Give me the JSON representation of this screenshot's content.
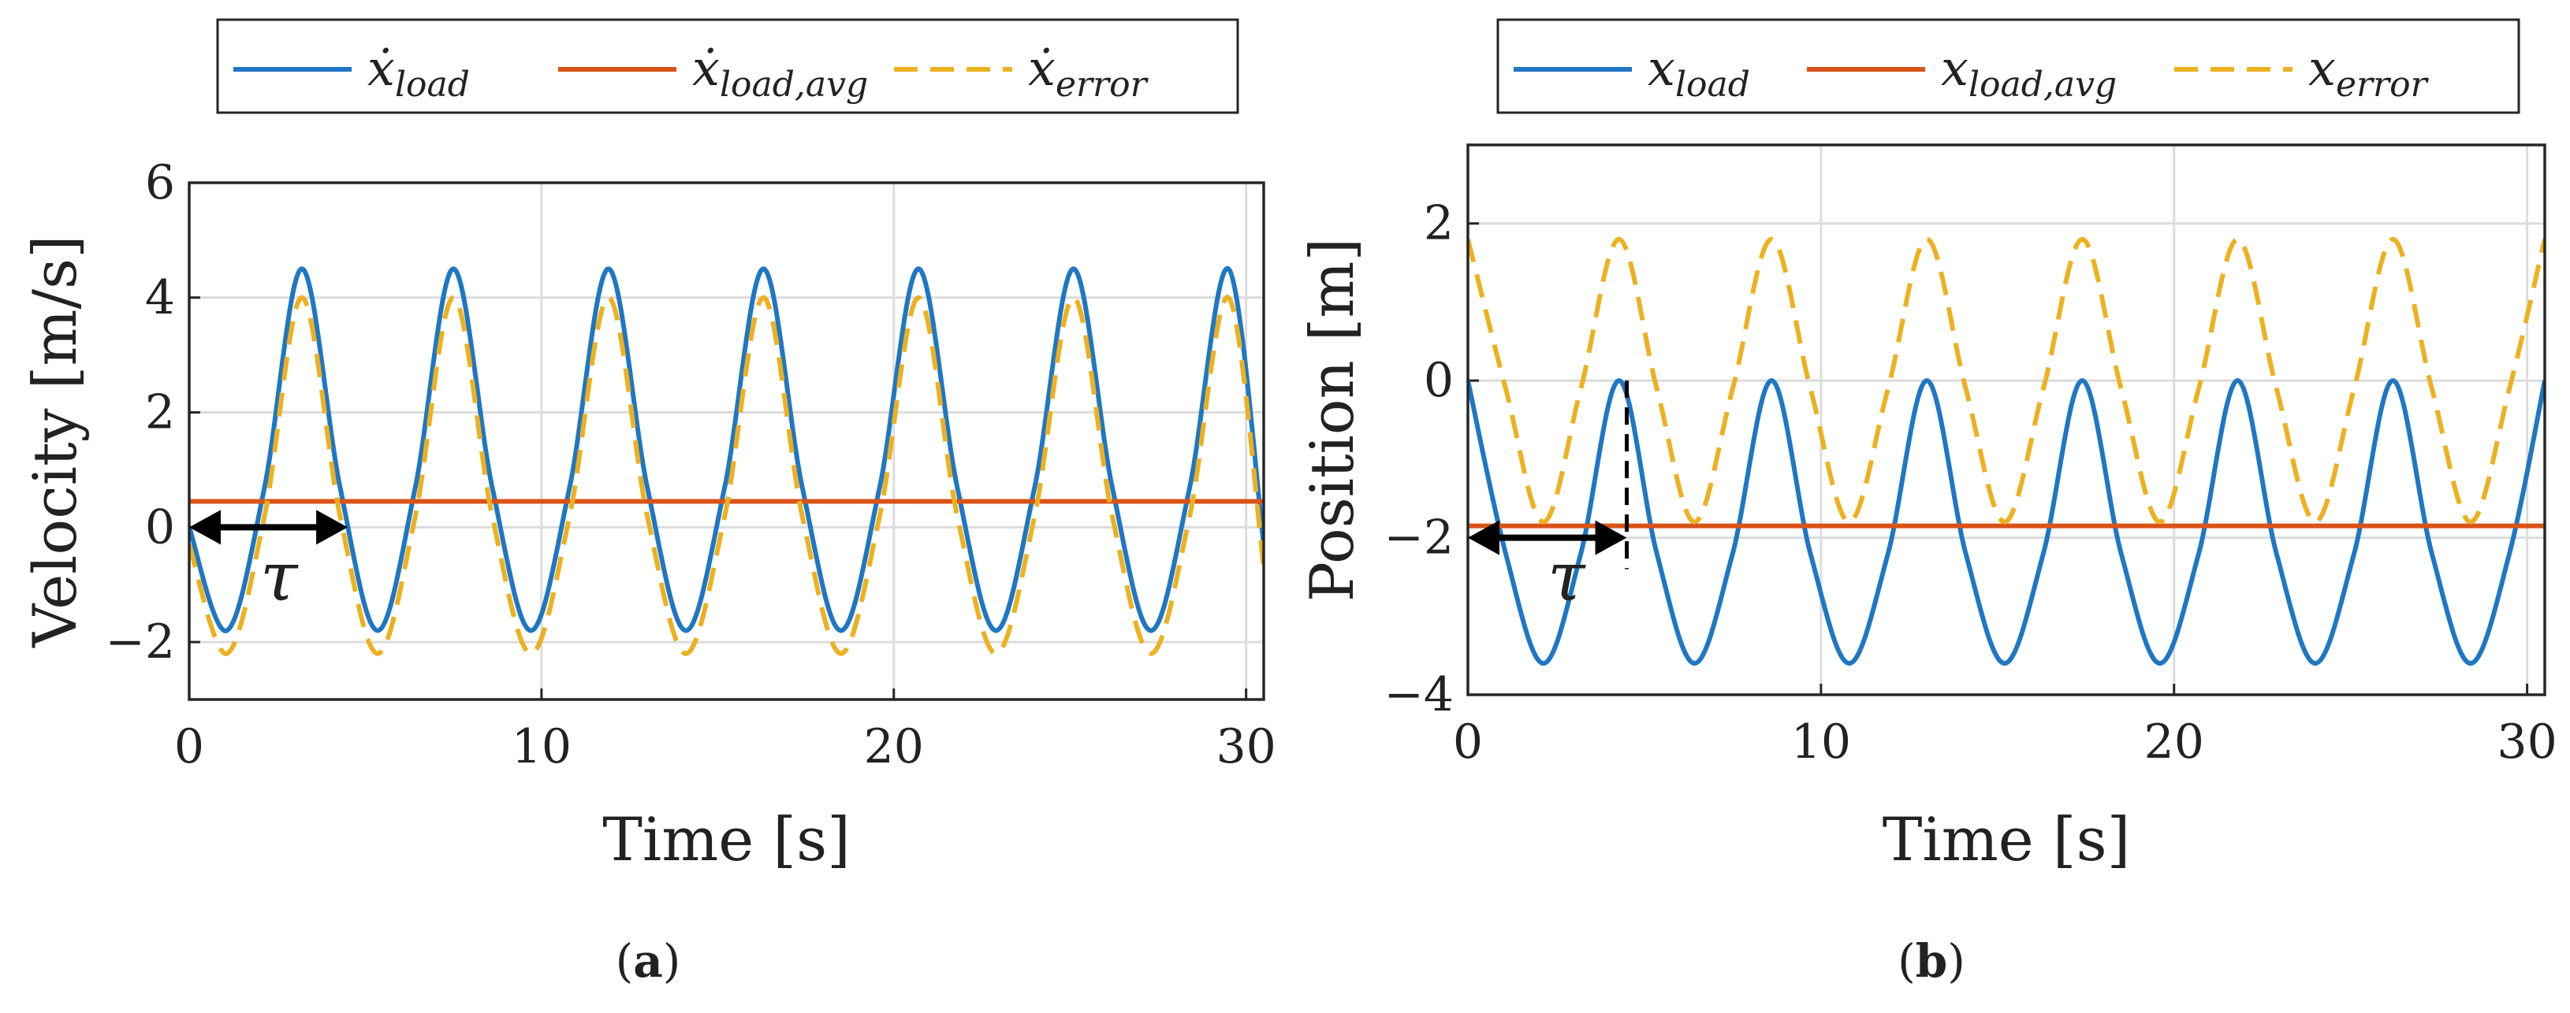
{
  "chart_data": [
    {
      "type": "line",
      "panel_label": "a",
      "xlabel": "Time [s]",
      "ylabel": "Velocity [m/s]",
      "xlim": [
        0,
        30.5
      ],
      "ylim": [
        -3,
        6
      ],
      "xticks": [
        "0",
        "10",
        "20",
        "30"
      ],
      "yticks": [
        "6",
        "4",
        "2",
        "0",
        "−2"
      ],
      "grid": true,
      "legend_position": "top-outside",
      "annotation": "τ",
      "series": [
        {
          "name": "ẋ",
          "subscript": "load",
          "color": "#1f77c4",
          "style": "solid",
          "x": [
            0,
            1.07,
            2.14,
            3.2,
            4.28,
            5.35,
            6.42,
            7.5,
            8.6,
            9.7,
            10.8,
            11.9,
            13.0,
            14.1,
            15.2,
            16.3,
            17.4,
            18.5,
            19.6,
            20.7,
            21.8,
            22.9,
            24.0,
            25.1,
            26.2,
            27.3,
            28.4,
            29.5,
            30.5
          ],
          "y": [
            0,
            -1.8,
            0.7,
            4.5,
            0.7,
            -1.8,
            0.7,
            4.5,
            0.7,
            -1.8,
            0.7,
            4.5,
            0.7,
            -1.8,
            0.7,
            4.5,
            0.7,
            -1.8,
            0.7,
            4.5,
            0.7,
            -1.8,
            0.7,
            4.5,
            0.7,
            -1.8,
            0.7,
            4.5,
            -0.3
          ]
        },
        {
          "name": "ẋ",
          "subscript": "load,avg",
          "color": "#d95319",
          "style": "solid",
          "x": [
            0,
            30.5
          ],
          "y": [
            0.45,
            0.45
          ]
        },
        {
          "name": "ẋ",
          "subscript": "error",
          "color": "#edb120",
          "style": "dashed",
          "x": [
            0,
            1.07,
            2.14,
            3.2,
            4.28,
            5.35,
            6.42,
            7.5,
            8.6,
            9.7,
            10.8,
            11.9,
            13.0,
            14.1,
            15.2,
            16.3,
            17.4,
            18.5,
            19.6,
            20.7,
            21.8,
            22.9,
            24.0,
            25.1,
            26.2,
            27.3,
            28.4,
            29.5,
            30.5
          ],
          "y": [
            -0.3,
            -2.2,
            0.2,
            4.0,
            0.2,
            -2.2,
            0.2,
            4.0,
            0.2,
            -2.2,
            0.2,
            4.0,
            0.2,
            -2.2,
            0.2,
            4.0,
            0.2,
            -2.2,
            0.2,
            4.0,
            0.2,
            -2.2,
            0.2,
            4.0,
            0.2,
            -2.2,
            0.2,
            4.0,
            -0.7
          ]
        }
      ]
    },
    {
      "type": "line",
      "panel_label": "b",
      "xlabel": "Time [s]",
      "ylabel": "Position [m]",
      "xlim": [
        0,
        30.5
      ],
      "ylim": [
        -4,
        3
      ],
      "xticks": [
        "0",
        "10",
        "20",
        "30"
      ],
      "yticks": [
        "2",
        "0",
        "−2",
        "−4"
      ],
      "grid": true,
      "legend_position": "top-outside",
      "annotation": "τ",
      "series": [
        {
          "name": "x",
          "subscript": "load",
          "color": "#1f77c4",
          "style": "solid",
          "x": [
            0,
            1.07,
            2.14,
            3.2,
            4.28,
            5.35,
            6.42,
            7.5,
            8.6,
            9.7,
            10.8,
            11.9,
            13.0,
            14.1,
            15.2,
            16.3,
            17.4,
            18.5,
            19.6,
            20.7,
            21.8,
            22.9,
            24.0,
            25.1,
            26.2,
            27.3,
            28.4,
            29.5,
            30.5
          ],
          "y": [
            0,
            -2.2,
            -3.6,
            -2.2,
            0,
            -2.2,
            -3.6,
            -2.2,
            0,
            -2.2,
            -3.6,
            -2.2,
            0,
            -2.2,
            -3.6,
            -2.2,
            0,
            -2.2,
            -3.6,
            -2.2,
            0,
            -2.2,
            -3.6,
            -2.2,
            0,
            -2.2,
            -3.6,
            -2.2,
            0
          ]
        },
        {
          "name": "x",
          "subscript": "load,avg",
          "color": "#d95319",
          "style": "solid",
          "x": [
            0,
            30.5
          ],
          "y": [
            -1.85,
            -1.85
          ]
        },
        {
          "name": "x",
          "subscript": "error",
          "color": "#edb120",
          "style": "dashed",
          "x": [
            0,
            1.07,
            2.14,
            3.2,
            4.28,
            5.35,
            6.42,
            7.5,
            8.6,
            9.7,
            10.8,
            11.9,
            13.0,
            14.1,
            15.2,
            16.3,
            17.4,
            18.5,
            19.6,
            20.7,
            21.8,
            22.9,
            24.0,
            25.1,
            26.2,
            27.3,
            28.4,
            29.5,
            30.5
          ],
          "y": [
            1.8,
            -0.1,
            -1.8,
            -0.1,
            1.8,
            -0.1,
            -1.8,
            -0.1,
            1.8,
            -0.1,
            -1.8,
            -0.1,
            1.8,
            -0.1,
            -1.8,
            -0.1,
            1.8,
            -0.1,
            -1.8,
            -0.1,
            1.8,
            -0.1,
            -1.8,
            -0.1,
            1.8,
            -0.1,
            -1.8,
            -0.1,
            1.8
          ]
        }
      ]
    }
  ]
}
